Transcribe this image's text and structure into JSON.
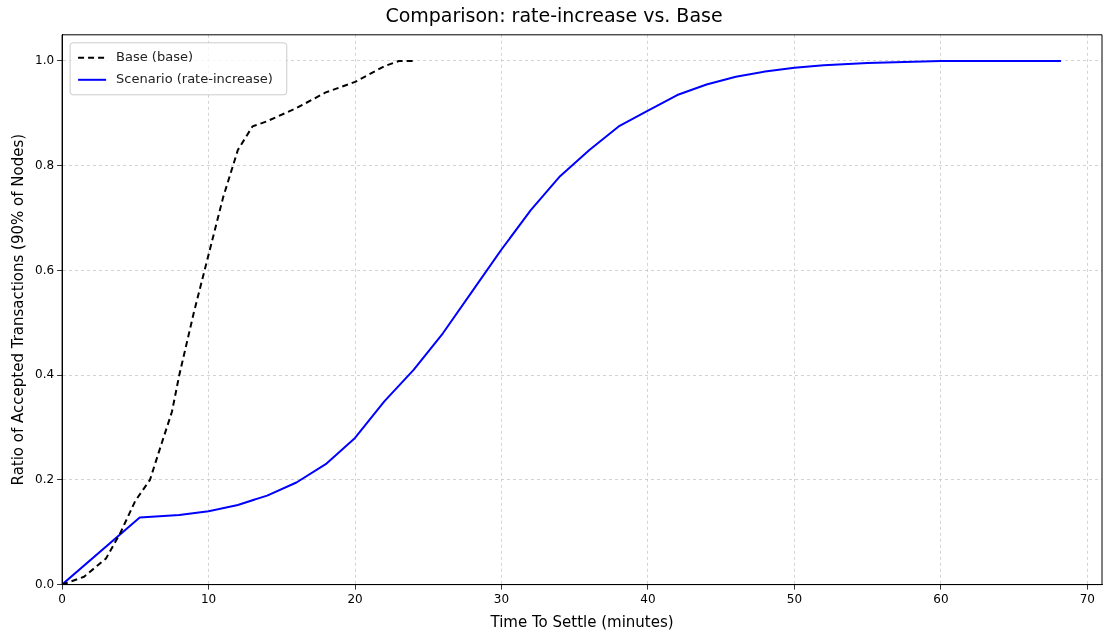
{
  "chart_data": {
    "type": "line",
    "title": "Comparison: rate-increase vs. Base",
    "xlabel": "Time To Settle (minutes)",
    "ylabel": "Ratio of Accepted Transactions (90% of Nodes)",
    "xlim": [
      0,
      71
    ],
    "xticks": [
      0,
      10,
      20,
      30,
      40,
      50,
      60,
      70
    ],
    "ylim": [
      0,
      1.05
    ],
    "yticks": [
      {
        "value": 0,
        "label": "0.0"
      },
      0.2,
      0.4,
      0.6,
      0.8,
      {
        "value": 1,
        "label": "1.0"
      }
    ],
    "grid": true,
    "legend": "top left",
    "marker": "none",
    "series": [
      {
        "name": "Base (base)",
        "color": "#000000",
        "line_style": "dashed",
        "x": [
          0,
          1.5,
          3,
          4,
          5,
          6,
          6.8,
          7.5,
          8,
          9,
          10,
          11,
          12,
          13,
          14,
          16,
          18,
          20,
          22,
          23,
          24
        ],
        "values": [
          0,
          0.015,
          0.05,
          0.1,
          0.16,
          0.2,
          0.27,
          0.33,
          0.4,
          0.52,
          0.63,
          0.74,
          0.83,
          0.875,
          0.885,
          0.91,
          0.94,
          0.96,
          0.99,
          1.0,
          1.0
        ]
      },
      {
        "name": "Scenario (rate-increase)",
        "color": "#0000ff",
        "line_style": "solid",
        "x": [
          0,
          5.3,
          8,
          10,
          12,
          14,
          16,
          18,
          20,
          22,
          24,
          26,
          28,
          30,
          32,
          34,
          36,
          38,
          40,
          42,
          44,
          46,
          48,
          50,
          52,
          55,
          60,
          68.2
        ],
        "values": [
          0,
          0.128,
          0.133,
          0.14,
          0.152,
          0.17,
          0.195,
          0.23,
          0.28,
          0.35,
          0.41,
          0.48,
          0.56,
          0.64,
          0.715,
          0.78,
          0.83,
          0.875,
          0.905,
          0.935,
          0.955,
          0.97,
          0.98,
          0.987,
          0.992,
          0.996,
          1.0,
          1.0
        ]
      }
    ]
  }
}
